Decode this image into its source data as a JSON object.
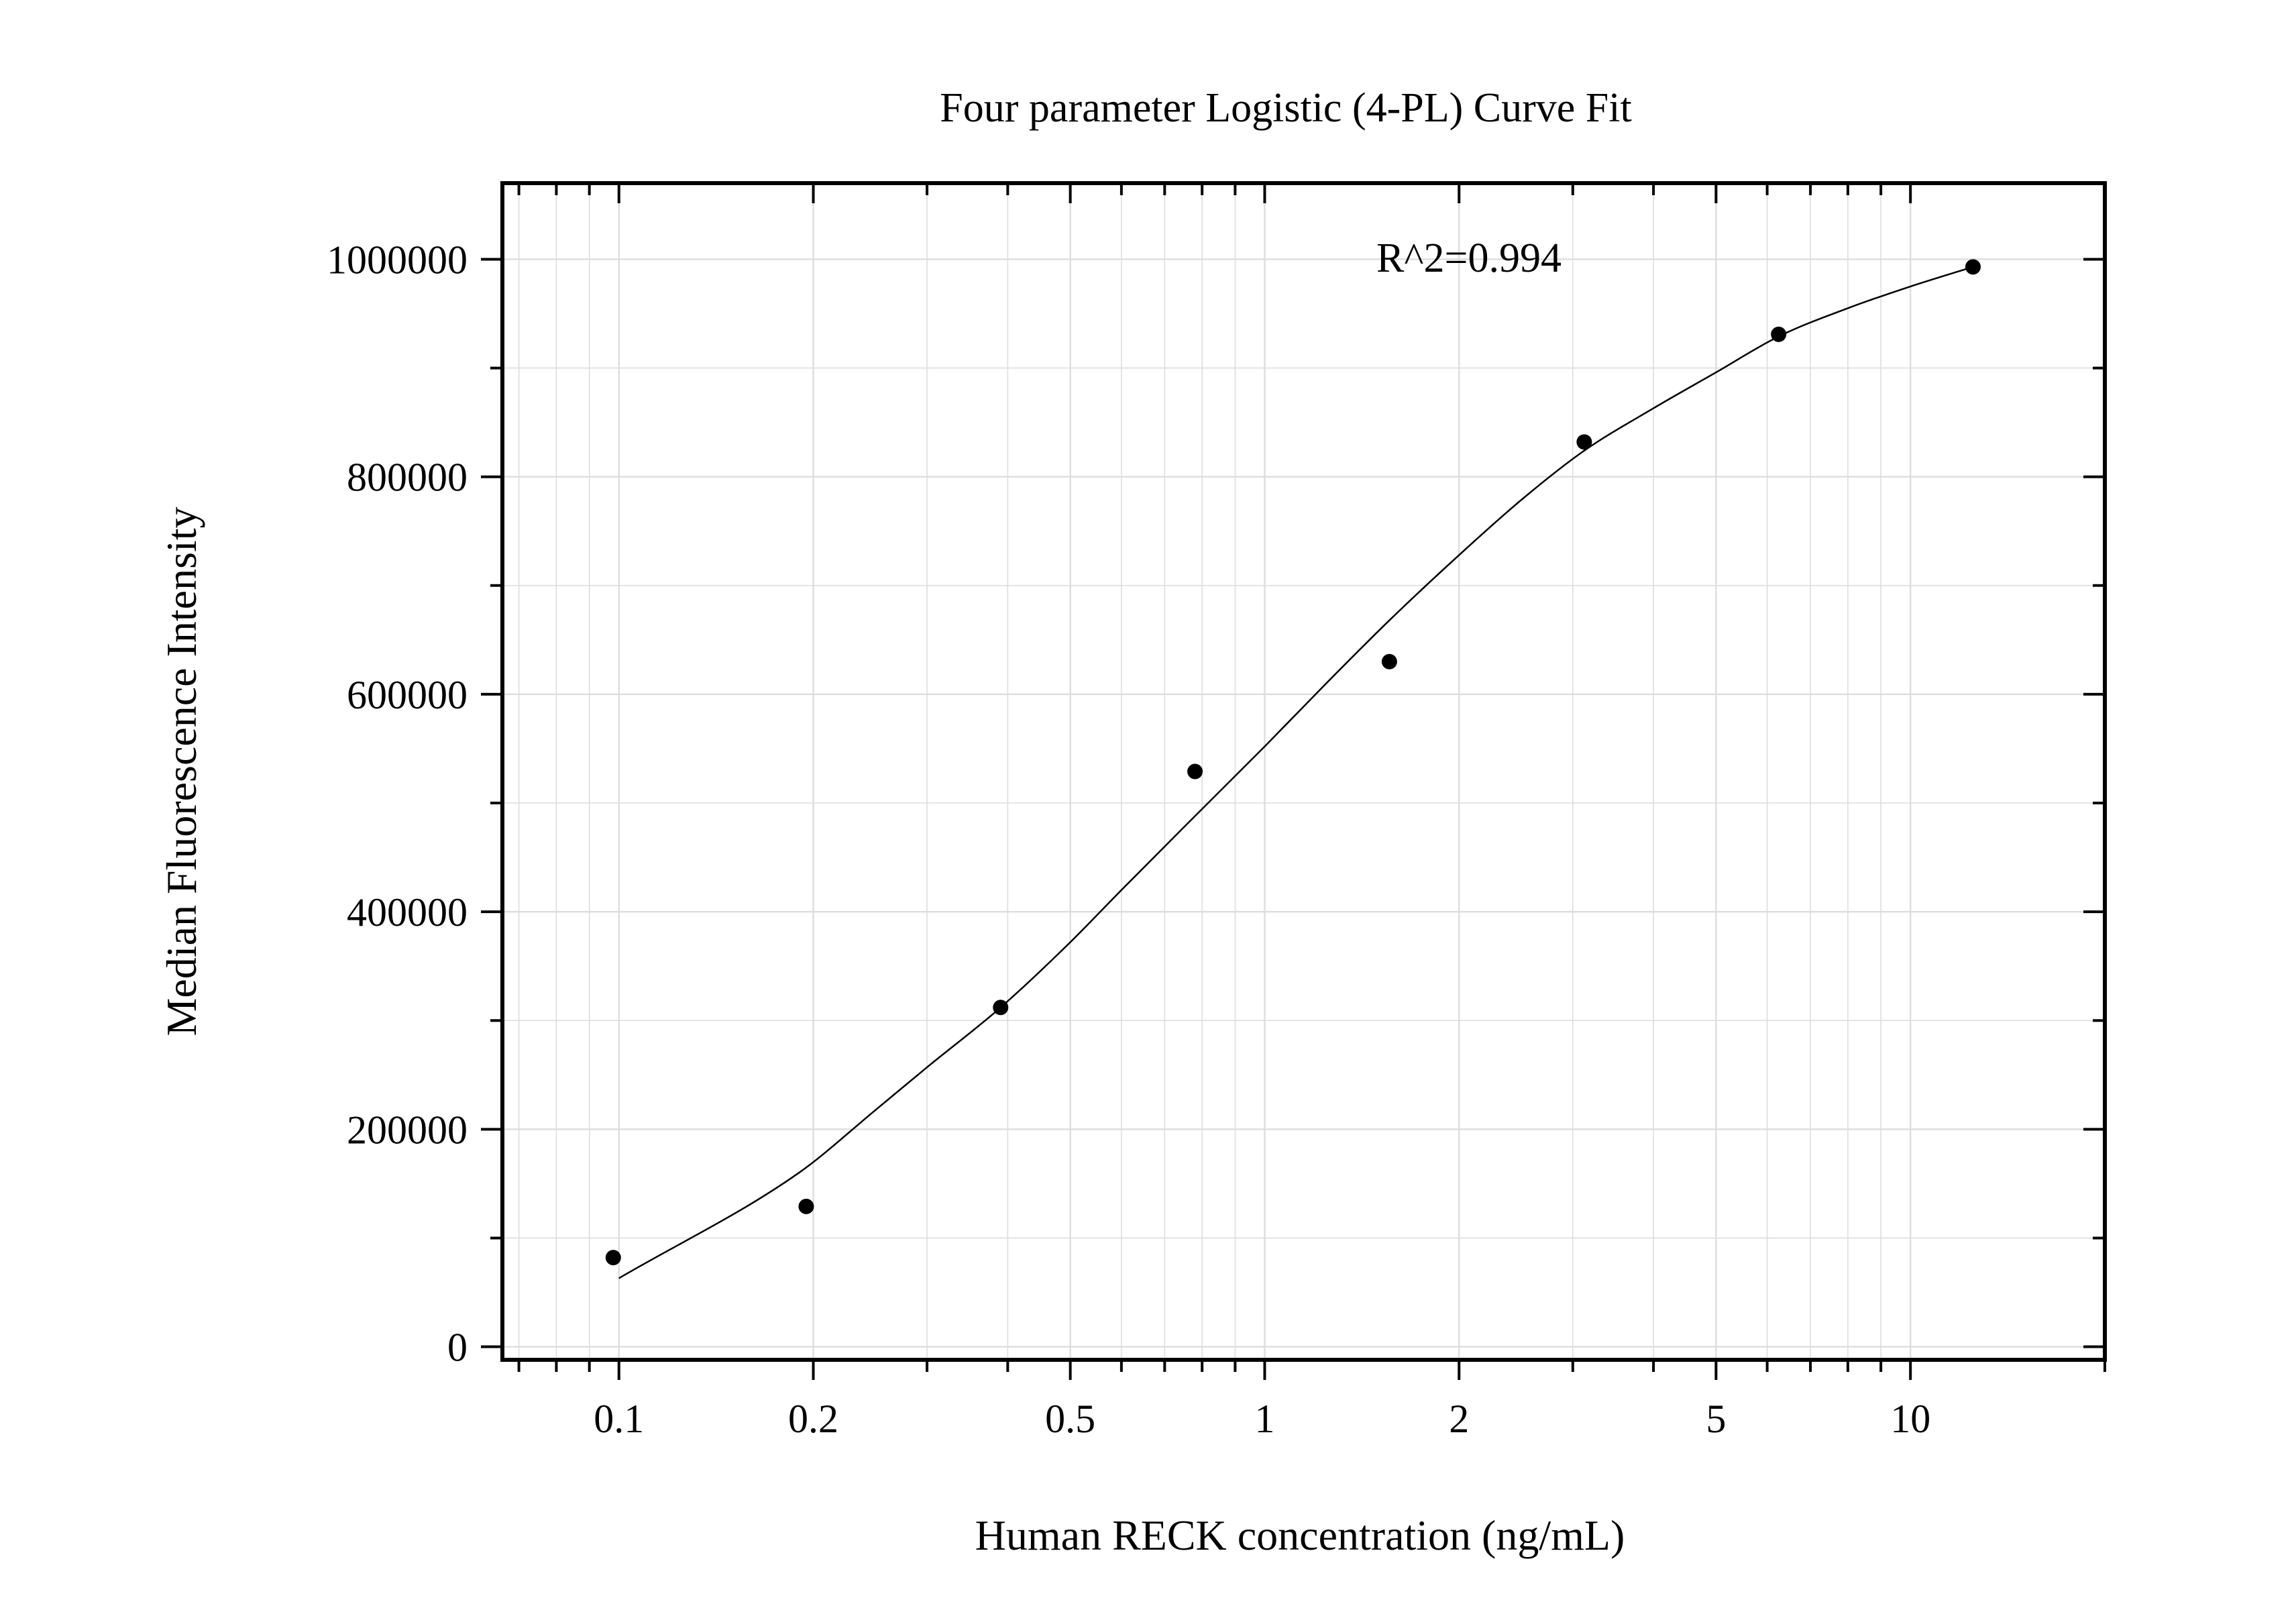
{
  "chart_data": {
    "type": "scatter",
    "title": "Four parameter Logistic (4-PL) Curve Fit",
    "xlabel": "Human RECK concentration (ng/mL)",
    "ylabel": "Median Fluorescence Intensity",
    "annotation": "R^2=0.994",
    "x_scale": "log",
    "xlim": [
      0.066,
      20
    ],
    "ylim": [
      -12000,
      1070000
    ],
    "x_major_ticks": [
      0.1,
      0.2,
      0.5,
      1,
      2,
      5,
      10
    ],
    "x_tick_labels": [
      "0.1",
      "0.2",
      "0.5",
      "1",
      "2",
      "5",
      "10"
    ],
    "y_major_ticks": [
      0,
      200000,
      400000,
      600000,
      800000,
      1000000
    ],
    "y_tick_labels": [
      "0",
      "200000",
      "400000",
      "600000",
      "800000",
      "1000000"
    ],
    "grid": true,
    "series": [
      {
        "type": "scatter",
        "x": [
          0.098,
          0.195,
          0.39,
          0.78,
          1.56,
          3.125,
          6.25,
          12.5
        ],
        "y": [
          82000,
          129000,
          312000,
          529000,
          630000,
          832000,
          931000,
          993000
        ]
      },
      {
        "type": "line",
        "x": [
          0.1,
          0.19,
          0.25,
          0.3,
          0.39,
          0.5,
          0.6,
          0.78,
          1,
          1.25,
          1.56,
          2,
          2.5,
          3.125,
          4,
          5,
          6.25,
          8,
          10,
          12.5
        ],
        "y": [
          63000,
          160000,
          218000,
          257000,
          312000,
          372000,
          420000,
          488000,
          552000,
          611000,
          668000,
          728000,
          779000,
          824000,
          863000,
          896000,
          929000,
          955000,
          975000,
          993000
        ]
      }
    ],
    "colors": {
      "marker": "#000000",
      "curve": "#000000",
      "grid": "#dddddd",
      "frame": "#000000"
    }
  }
}
